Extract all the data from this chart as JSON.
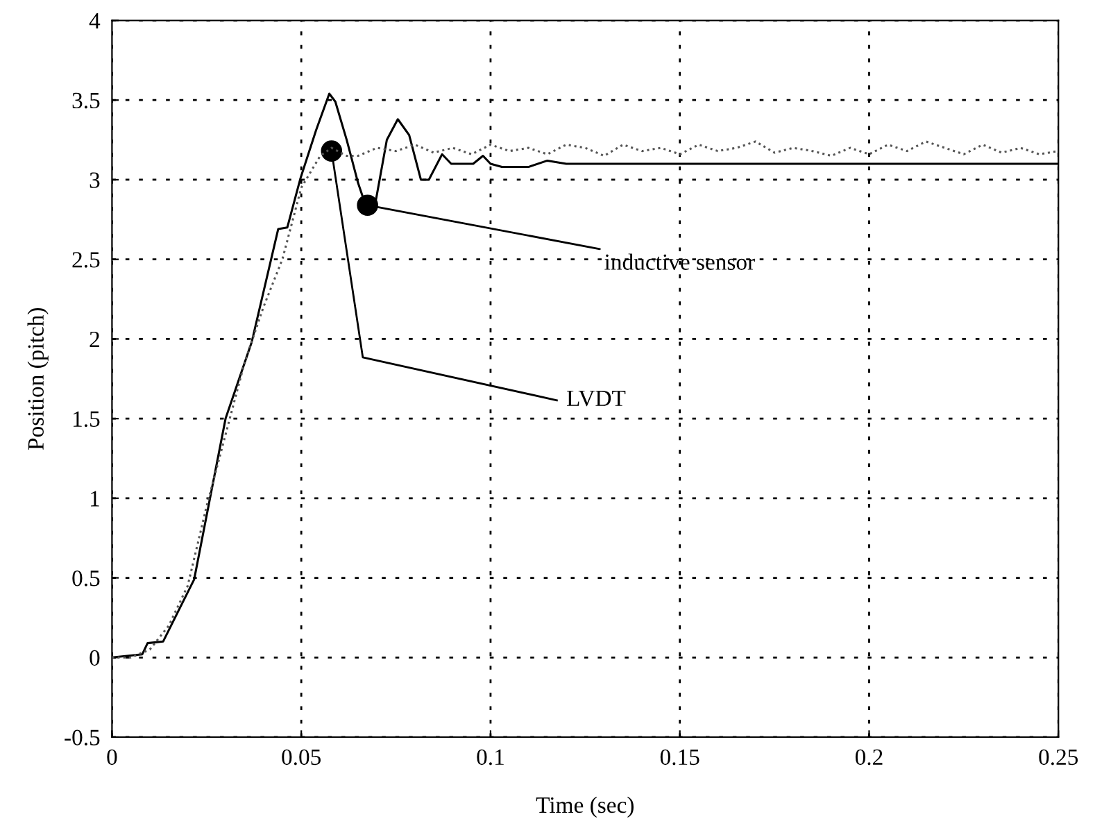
{
  "chart_data": {
    "type": "line",
    "xlabel": "Time (sec)",
    "ylabel": "Position (pitch)",
    "series": [
      {
        "color": "#000000",
        "line_style": "solid",
        "x": [
          0,
          0.008,
          0.0094,
          0.0135,
          0.0217,
          0.03,
          0.0369,
          0.0439,
          0.0463,
          0.0498,
          0.0539,
          0.0574,
          0.059,
          0.062,
          0.065,
          0.067,
          0.0697,
          0.0726,
          0.0755,
          0.0785,
          0.0816,
          0.0837,
          0.0872,
          0.0896,
          0.0954,
          0.098,
          0.1,
          0.103,
          0.11,
          0.115,
          0.12,
          0.15,
          0.2,
          0.25
        ],
        "values": [
          0,
          0.02,
          0.09,
          0.1,
          0.49,
          1.5,
          1.98,
          2.69,
          2.7,
          3.01,
          3.31,
          3.54,
          3.49,
          3.25,
          2.98,
          2.84,
          2.87,
          3.25,
          3.38,
          3.28,
          3.0,
          3.0,
          3.16,
          3.1,
          3.1,
          3.15,
          3.1,
          3.08,
          3.08,
          3.12,
          3.1,
          3.1,
          3.1,
          3.1
        ]
      },
      {
        "color": "#555555",
        "line_style": "dotted",
        "x": [
          0,
          0.005,
          0.01,
          0.015,
          0.02,
          0.025,
          0.03,
          0.035,
          0.04,
          0.045,
          0.05,
          0.055,
          0.058,
          0.062,
          0.065,
          0.07,
          0.075,
          0.08,
          0.085,
          0.09,
          0.095,
          0.1,
          0.105,
          0.11,
          0.115,
          0.12,
          0.125,
          0.13,
          0.135,
          0.14,
          0.145,
          0.15,
          0.155,
          0.16,
          0.165,
          0.17,
          0.175,
          0.18,
          0.185,
          0.19,
          0.195,
          0.2,
          0.205,
          0.21,
          0.215,
          0.22,
          0.225,
          0.23,
          0.235,
          0.24,
          0.245,
          0.25
        ],
        "values": [
          0,
          0,
          0.05,
          0.2,
          0.45,
          0.95,
          1.4,
          1.85,
          2.2,
          2.5,
          2.95,
          3.15,
          3.2,
          3.15,
          3.15,
          3.2,
          3.18,
          3.22,
          3.17,
          3.2,
          3.16,
          3.22,
          3.18,
          3.2,
          3.16,
          3.22,
          3.2,
          3.15,
          3.22,
          3.18,
          3.2,
          3.16,
          3.22,
          3.18,
          3.2,
          3.24,
          3.17,
          3.2,
          3.18,
          3.15,
          3.2,
          3.16,
          3.22,
          3.18,
          3.24,
          3.2,
          3.16,
          3.22,
          3.17,
          3.2,
          3.16,
          3.18
        ]
      }
    ],
    "annotations": [
      {
        "text": "inductive sensor",
        "x": 0.0675,
        "y": 2.84
      },
      {
        "text": "LVDT",
        "x": 0.058,
        "y": 3.18
      }
    ],
    "xlim": [
      0,
      0.25
    ],
    "ylim": [
      -0.5,
      4
    ],
    "xticks": [
      0,
      0.05,
      0.1,
      0.15,
      0.2,
      0.25
    ],
    "yticks": [
      -0.5,
      0,
      0.5,
      1,
      1.5,
      2,
      2.5,
      3,
      3.5,
      4
    ],
    "grid": true
  }
}
